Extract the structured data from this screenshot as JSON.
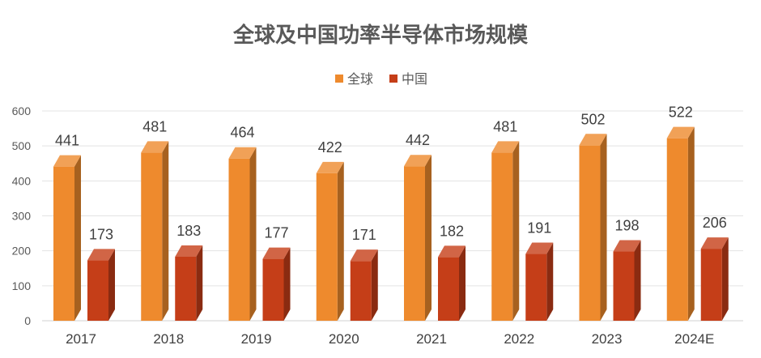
{
  "chart_data": {
    "type": "bar",
    "title": "全球及中国功率半导体市场规模",
    "categories": [
      "2017",
      "2018",
      "2019",
      "2020",
      "2021",
      "2022",
      "2023",
      "2024E"
    ],
    "series": [
      {
        "name": "全球",
        "values": [
          441,
          481,
          464,
          422,
          442,
          481,
          502,
          522
        ],
        "color": "#EE8A2D"
      },
      {
        "name": "中国",
        "values": [
          173,
          183,
          177,
          171,
          182,
          191,
          198,
          206
        ],
        "color": "#C53E18"
      }
    ],
    "yticks": [
      0,
      100,
      200,
      300,
      400,
      500,
      600
    ],
    "ylim": [
      0,
      600
    ],
    "grid": true,
    "legend_position": "top-center",
    "style": "3d-column"
  }
}
